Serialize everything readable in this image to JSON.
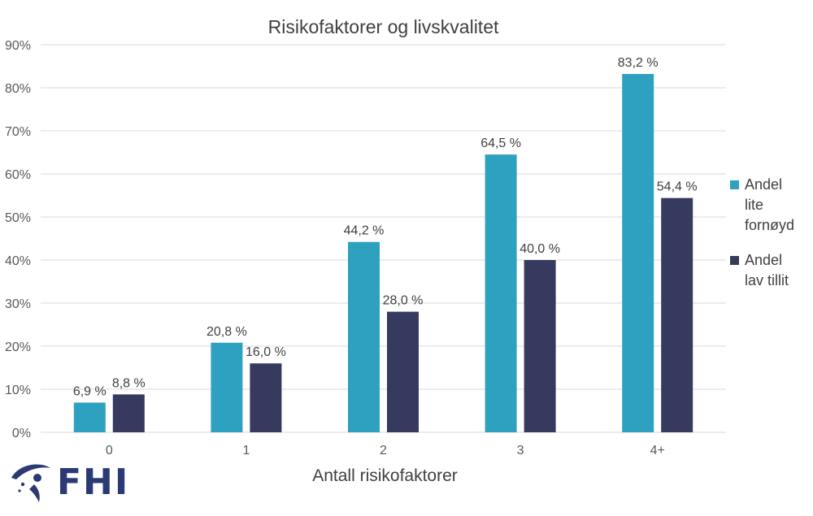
{
  "chart_data": {
    "type": "bar",
    "title": "Risikofaktorer og livskvalitet",
    "xlabel": "Antall risikofaktorer",
    "ylabel": "",
    "categories": [
      "0",
      "1",
      "2",
      "3",
      "4+"
    ],
    "ylim": [
      0,
      90
    ],
    "yticks": [
      0,
      10,
      20,
      30,
      40,
      50,
      60,
      70,
      80,
      90
    ],
    "ytick_labels": [
      "0%",
      "10%",
      "20%",
      "30%",
      "40%",
      "50%",
      "60%",
      "70%",
      "80%",
      "90%"
    ],
    "grid": true,
    "legend_position": "right",
    "series": [
      {
        "name": "Andel lite fornøyd",
        "legend_lines": [
          "Andel",
          "lite",
          "fornøyd"
        ],
        "color": "#2fa1c0",
        "values": [
          6.9,
          20.8,
          44.2,
          64.5,
          83.2
        ],
        "labels": [
          "6,9 %",
          "20,8 %",
          "44,2 %",
          "64,5 %",
          "83,2 %"
        ]
      },
      {
        "name": "Andel lav tillit",
        "legend_lines": [
          "Andel",
          "lav tillit"
        ],
        "color": "#363a5e",
        "values": [
          8.8,
          16.0,
          28.0,
          40.0,
          54.4
        ],
        "labels": [
          "8,8 %",
          "16,0 %",
          "28,0 %",
          "40,0 %",
          "54,4 %"
        ]
      }
    ]
  },
  "logo": {
    "text": "FHI",
    "icon": "fhi-swoosh-icon",
    "color": "#2b3a75"
  }
}
